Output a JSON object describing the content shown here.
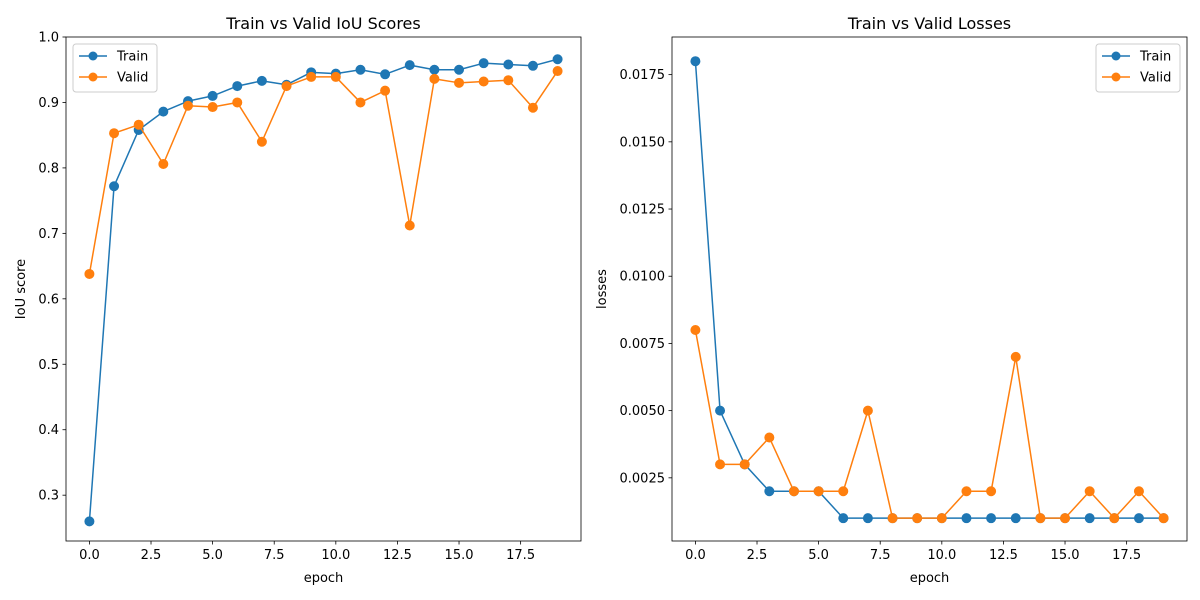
{
  "chart_data": [
    {
      "type": "line",
      "title": "Train vs Valid IoU Scores",
      "xlabel": "epoch",
      "ylabel": "IoU score",
      "x": [
        0,
        1,
        2,
        3,
        4,
        5,
        6,
        7,
        8,
        9,
        10,
        11,
        12,
        13,
        14,
        15,
        16,
        17,
        18,
        19
      ],
      "xlim": [
        -0.95,
        19.95
      ],
      "ylim": [
        0.23,
        1.0
      ],
      "xticks": [
        0,
        2.5,
        5,
        7.5,
        10,
        12.5,
        15,
        17.5
      ],
      "xtick_labels": [
        "0.0",
        "2.5",
        "5.0",
        "7.5",
        "10.0",
        "12.5",
        "15.0",
        "17.5"
      ],
      "yticks": [
        0.3,
        0.4,
        0.5,
        0.6,
        0.7,
        0.8,
        0.9,
        1.0
      ],
      "ytick_labels": [
        "0.3",
        "0.4",
        "0.5",
        "0.6",
        "0.7",
        "0.8",
        "0.9",
        "1.0"
      ],
      "grid": false,
      "legend": "upper left",
      "series": [
        {
          "name": "Train",
          "color": "#1f77b4",
          "values": [
            0.26,
            0.772,
            0.858,
            0.886,
            0.902,
            0.91,
            0.925,
            0.933,
            0.927,
            0.946,
            0.944,
            0.95,
            0.943,
            0.957,
            0.95,
            0.95,
            0.96,
            0.958,
            0.956,
            0.966
          ]
        },
        {
          "name": "Valid",
          "color": "#ff7f0e",
          "values": [
            0.638,
            0.853,
            0.866,
            0.806,
            0.895,
            0.893,
            0.9,
            0.84,
            0.925,
            0.939,
            0.939,
            0.9,
            0.918,
            0.712,
            0.936,
            0.93,
            0.932,
            0.934,
            0.892,
            0.948
          ]
        }
      ]
    },
    {
      "type": "line",
      "title": "Train vs Valid Losses",
      "xlabel": "epoch",
      "ylabel": "losses",
      "x": [
        0,
        1,
        2,
        3,
        4,
        5,
        6,
        7,
        8,
        9,
        10,
        11,
        12,
        13,
        14,
        15,
        16,
        17,
        18,
        19
      ],
      "xlim": [
        -0.95,
        19.95
      ],
      "ylim": [
        0.00015,
        0.0189
      ],
      "xticks": [
        0,
        2.5,
        5,
        7.5,
        10,
        12.5,
        15,
        17.5
      ],
      "xtick_labels": [
        "0.0",
        "2.5",
        "5.0",
        "7.5",
        "10.0",
        "12.5",
        "15.0",
        "17.5"
      ],
      "yticks": [
        0.0025,
        0.005,
        0.0075,
        0.01,
        0.0125,
        0.015,
        0.0175
      ],
      "ytick_labels": [
        "0.0025",
        "0.0050",
        "0.0075",
        "0.0100",
        "0.0125",
        "0.0150",
        "0.0175"
      ],
      "grid": false,
      "legend": "upper right",
      "series": [
        {
          "name": "Train",
          "color": "#1f77b4",
          "values": [
            0.018,
            0.005,
            0.003,
            0.002,
            0.002,
            0.002,
            0.001,
            0.001,
            0.001,
            0.001,
            0.001,
            0.001,
            0.001,
            0.001,
            0.001,
            0.001,
            0.001,
            0.001,
            0.001,
            0.001
          ]
        },
        {
          "name": "Valid",
          "color": "#ff7f0e",
          "values": [
            0.008,
            0.003,
            0.003,
            0.004,
            0.002,
            0.002,
            0.002,
            0.005,
            0.001,
            0.001,
            0.001,
            0.002,
            0.002,
            0.007,
            0.001,
            0.001,
            0.002,
            0.001,
            0.002,
            0.001
          ]
        }
      ]
    }
  ]
}
